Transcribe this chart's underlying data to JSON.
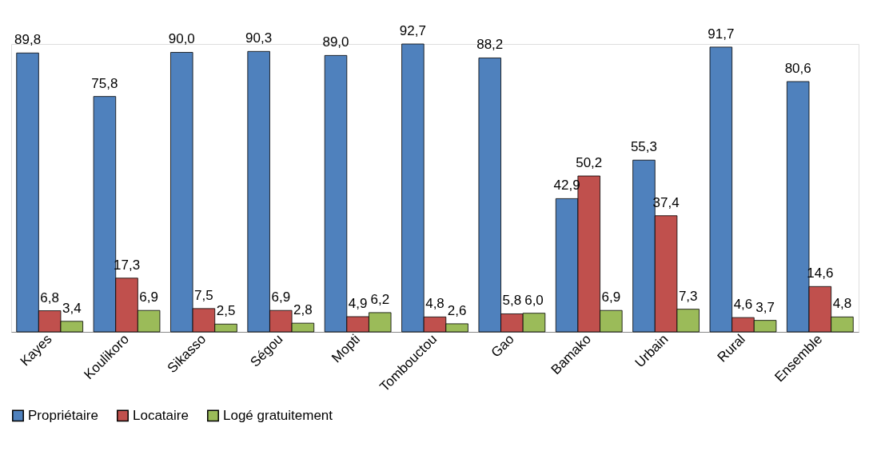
{
  "chart_data": {
    "type": "bar",
    "categories": [
      "Kayes",
      "Koulikoro",
      "Sikasso",
      "Ségou",
      "Mopti",
      "Tombouctou",
      "Gao",
      "Bamako",
      "Urbain",
      "Rural",
      "Ensemble"
    ],
    "series": [
      {
        "name": "Propriétaire",
        "color": "#4f81bd",
        "values": [
          89.8,
          75.8,
          90.0,
          90.3,
          89.0,
          92.7,
          88.2,
          42.9,
          55.3,
          91.7,
          80.6
        ],
        "value_labels": [
          "89,8",
          "75,8",
          "90,0",
          "90,3",
          "89,0",
          "92,7",
          "88,2",
          "42,9",
          "55,3",
          "91,7",
          "80,6"
        ]
      },
      {
        "name": "Locataire",
        "color": "#c0504d",
        "values": [
          6.8,
          17.3,
          7.5,
          6.9,
          4.9,
          4.8,
          5.8,
          50.2,
          37.4,
          4.6,
          14.6
        ],
        "value_labels": [
          "6,8",
          "17,3",
          "7,5",
          "6,9",
          "4,9",
          "4,8",
          "5,8",
          "50,2",
          "37,4",
          "4,6",
          "14,6"
        ]
      },
      {
        "name": "Logé gratuitement",
        "color": "#9bbb59",
        "values": [
          3.4,
          6.9,
          2.5,
          2.8,
          6.2,
          2.6,
          6.0,
          6.9,
          7.3,
          3.7,
          4.8
        ],
        "value_labels": [
          "3,4",
          "6,9",
          "2,5",
          "2,8",
          "6,2",
          "2,6",
          "6,0",
          "6,9",
          "7,3",
          "3,7",
          "4,8"
        ]
      }
    ],
    "legend": "bottom",
    "grid": false,
    "tick_labels": "x"
  }
}
